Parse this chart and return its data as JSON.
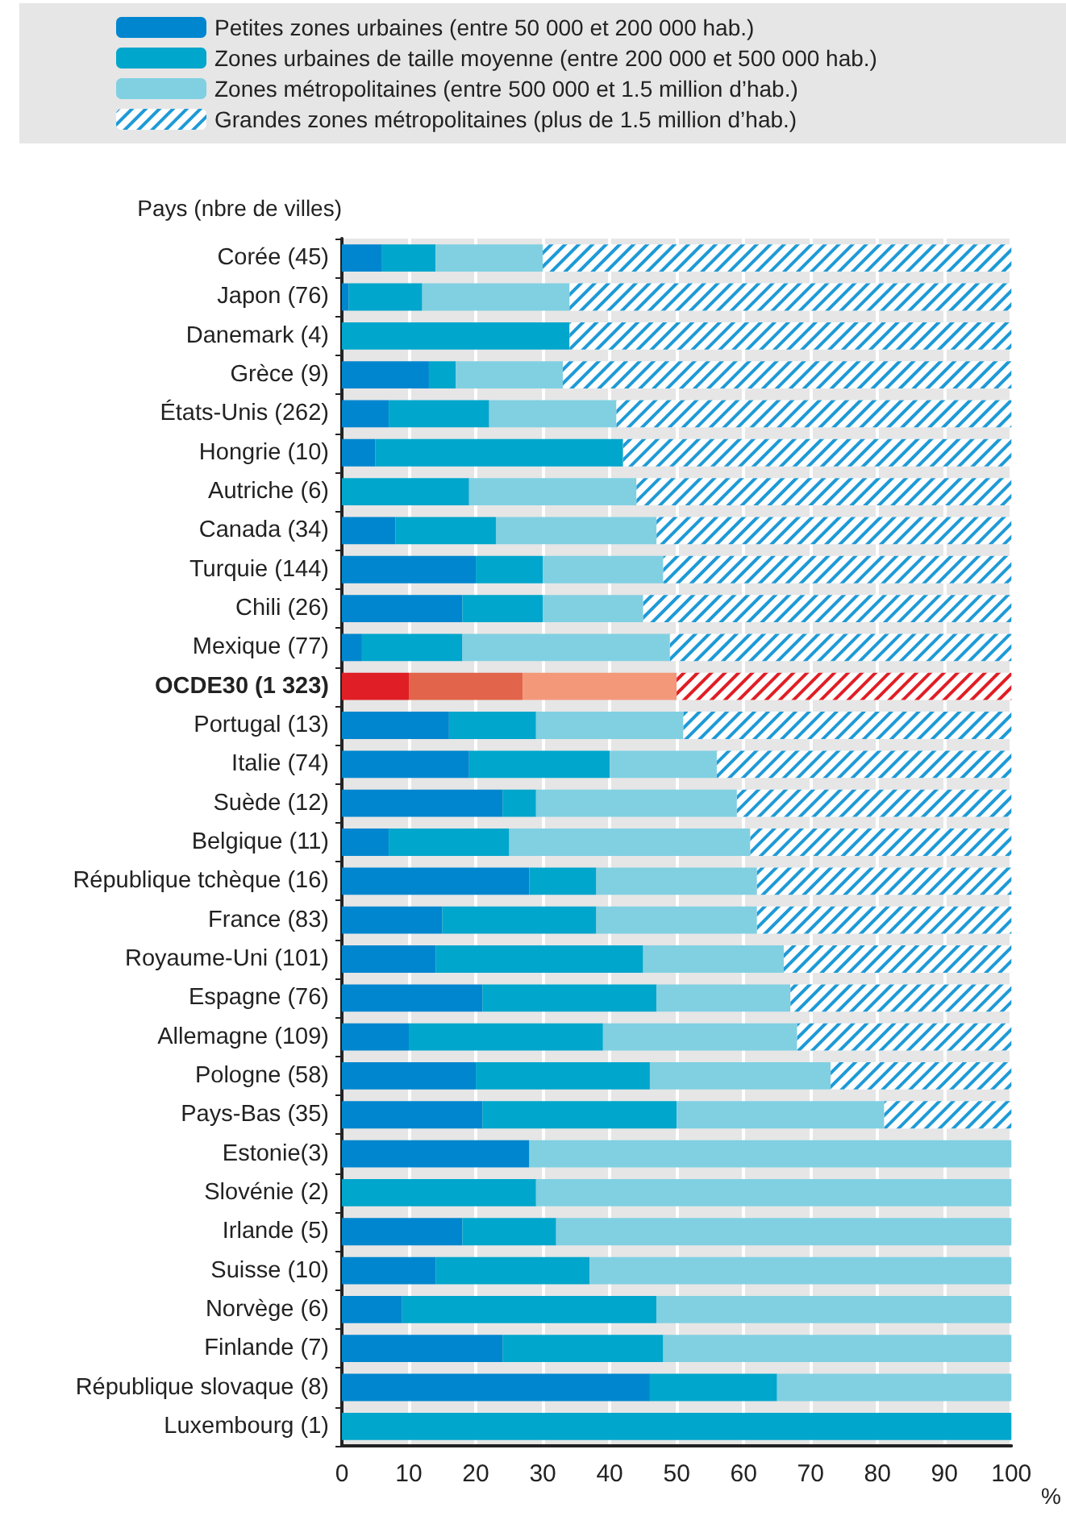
{
  "chart_data": {
    "type": "bar",
    "orientation": "horizontal",
    "stacked": true,
    "ylabel": "Pays (nbre de villes)",
    "xlabel": "%",
    "categories": [
      "Corée (45)",
      "Japon (76)",
      "Danemark (4)",
      "Grèce (9)",
      "États-Unis (262)",
      "Hongrie (10)",
      "Autriche (6)",
      "Canada (34)",
      "Turquie (144)",
      "Chili (26)",
      "Mexique (77)",
      "OCDE30 (1 323)",
      "Portugal (13)",
      "Italie (74)",
      "Suède (12)",
      "Belgique (11)",
      "République tchèque (16)",
      "France (83)",
      "Royaume-Uni (101)",
      "Espagne (76)",
      "Allemagne (109)",
      "Pologne (58)",
      "Pays-Bas (35)",
      "Estonie(3)",
      "Slovénie (2)",
      "Irlande (5)",
      "Suisse (10)",
      "Norvège (6)",
      "Finlande (7)",
      "République slovaque (8)",
      "Luxembourg (1)"
    ],
    "series": [
      {
        "name": "Petites zones urbaines (entre 50 000 et 200 000 hab.)",
        "color": "#0086cf",
        "colors": [
          "#0086cf",
          "#0086cf",
          "#0086cf",
          "#0086cf",
          "#0086cf",
          "#0086cf",
          "#0086cf",
          "#0086cf",
          "#0086cf",
          "#0086cf",
          "#0086cf",
          "#e01e25",
          "#0086cf",
          "#0086cf",
          "#0086cf",
          "#0086cf",
          "#0086cf",
          "#0086cf",
          "#0086cf",
          "#0086cf",
          "#0086cf",
          "#0086cf",
          "#0086cf",
          "#0086cf",
          "#0086cf",
          "#0086cf",
          "#0086cf",
          "#0086cf",
          "#0086cf",
          "#0086cf",
          "#0086cf"
        ],
        "values": [
          6,
          1,
          0,
          13,
          7,
          5,
          0,
          8,
          20,
          18,
          3,
          10,
          16,
          19,
          24,
          7,
          28,
          15,
          14,
          21,
          10,
          20,
          21,
          28,
          0,
          18,
          14,
          9,
          24,
          46,
          0
        ]
      },
      {
        "name": "Zones urbaines de taille moyenne (entre 200 000 et 500 000 hab.)",
        "color": "#00a6cc",
        "colors": [
          "#00a6cc",
          "#00a6cc",
          "#00a6cc",
          "#00a6cc",
          "#00a6cc",
          "#00a6cc",
          "#00a6cc",
          "#00a6cc",
          "#00a6cc",
          "#00a6cc",
          "#00a6cc",
          "#e2644a",
          "#00a6cc",
          "#00a6cc",
          "#00a6cc",
          "#00a6cc",
          "#00a6cc",
          "#00a6cc",
          "#00a6cc",
          "#00a6cc",
          "#00a6cc",
          "#00a6cc",
          "#00a6cc",
          "#00a6cc",
          "#00a6cc",
          "#00a6cc",
          "#00a6cc",
          "#00a6cc",
          "#00a6cc",
          "#00a6cc",
          "#00a6cc"
        ],
        "values": [
          8,
          11,
          34,
          4,
          15,
          37,
          19,
          15,
          10,
          12,
          15,
          17,
          13,
          21,
          5,
          18,
          10,
          23,
          31,
          26,
          29,
          26,
          29,
          0,
          29,
          14,
          23,
          38,
          24,
          19,
          100
        ]
      },
      {
        "name": "Zones métropolitaines (entre 500 000 et 1.5 million d’hab.)",
        "color": "#80d0e2",
        "colors": [
          "#80d0e2",
          "#80d0e2",
          "#80d0e2",
          "#80d0e2",
          "#80d0e2",
          "#80d0e2",
          "#80d0e2",
          "#80d0e2",
          "#80d0e2",
          "#80d0e2",
          "#80d0e2",
          "#f4987a",
          "#80d0e2",
          "#80d0e2",
          "#80d0e2",
          "#80d0e2",
          "#80d0e2",
          "#80d0e2",
          "#80d0e2",
          "#80d0e2",
          "#80d0e2",
          "#80d0e2",
          "#80d0e2",
          "#80d0e2",
          "#80d0e2",
          "#80d0e2",
          "#80d0e2",
          "#80d0e2",
          "#80d0e2",
          "#80d0e2",
          "#80d0e2"
        ],
        "values": [
          16,
          22,
          0,
          16,
          19,
          0,
          25,
          24,
          18,
          15,
          31,
          23,
          22,
          16,
          30,
          36,
          24,
          24,
          21,
          20,
          29,
          27,
          31,
          72,
          71,
          68,
          63,
          53,
          52,
          35,
          0
        ]
      },
      {
        "name": "Grandes zones métropolitaines (plus de 1.5 million d’hab.)",
        "color": "#1e9ad6",
        "colors": [
          "#1e9ad6",
          "#1e9ad6",
          "#1e9ad6",
          "#1e9ad6",
          "#1e9ad6",
          "#1e9ad6",
          "#1e9ad6",
          "#1e9ad6",
          "#1e9ad6",
          "#1e9ad6",
          "#1e9ad6",
          "#e01e25",
          "#1e9ad6",
          "#1e9ad6",
          "#1e9ad6",
          "#1e9ad6",
          "#1e9ad6",
          "#1e9ad6",
          "#1e9ad6",
          "#1e9ad6",
          "#1e9ad6",
          "#1e9ad6",
          "#1e9ad6",
          "#1e9ad6",
          "#1e9ad6",
          "#1e9ad6",
          "#1e9ad6",
          "#1e9ad6",
          "#1e9ad6",
          "#1e9ad6",
          "#1e9ad6"
        ],
        "values": [
          70,
          66,
          66,
          67,
          59,
          58,
          56,
          53,
          52,
          55,
          51,
          50,
          49,
          44,
          41,
          39,
          38,
          38,
          34,
          33,
          32,
          27,
          19,
          0,
          0,
          0,
          0,
          0,
          0,
          0,
          0
        ]
      }
    ],
    "xlim": [
      0,
      100
    ],
    "xticks": [
      0,
      10,
      20,
      30,
      40,
      50,
      60,
      70,
      80,
      90,
      100
    ],
    "grid": "x",
    "legend": "top"
  }
}
